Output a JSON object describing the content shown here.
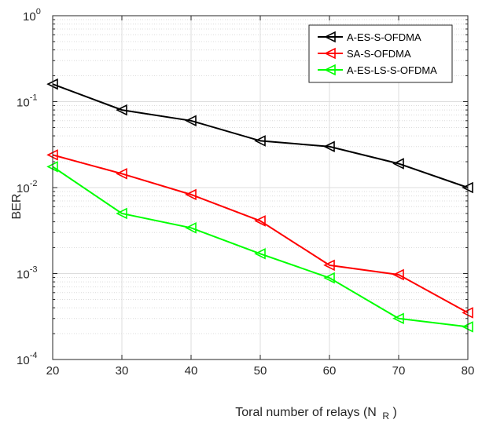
{
  "chart_data": {
    "type": "line",
    "title": "",
    "xlabel": "Toral number of relays (N",
    "xlabel_sub": "R",
    "xlabel_close": ")",
    "ylabel": "BER",
    "x": [
      20,
      30,
      40,
      50,
      60,
      70,
      80
    ],
    "xlim": [
      20,
      80
    ],
    "ylim": [
      0.0001,
      1
    ],
    "yscale": "log",
    "grid": true,
    "legend_position": "top-right",
    "x_ticks": [
      "20",
      "30",
      "40",
      "50",
      "60",
      "70",
      "80"
    ],
    "y_ticks": [
      {
        "base": "10",
        "exp": "0"
      },
      {
        "base": "10",
        "exp": "-1"
      },
      {
        "base": "10",
        "exp": "-2"
      },
      {
        "base": "10",
        "exp": "-3"
      },
      {
        "base": "10",
        "exp": "-4"
      }
    ],
    "series": [
      {
        "name": "A-ES-S-OFDMA",
        "color": "#000000",
        "marker": "triangle-left",
        "values": [
          0.16,
          0.08,
          0.06,
          0.035,
          0.03,
          0.019,
          0.01
        ]
      },
      {
        "name": "SA-S-OFDMA",
        "color": "#ff0000",
        "marker": "triangle-left",
        "values": [
          0.024,
          0.0145,
          0.0083,
          0.0041,
          0.00125,
          0.00097,
          0.00035
        ]
      },
      {
        "name": "A-ES-LS-S-OFDMA",
        "color": "#00ff00",
        "marker": "triangle-left",
        "values": [
          0.0175,
          0.005,
          0.0034,
          0.0017,
          0.00089,
          0.0003,
          0.00024
        ]
      }
    ]
  }
}
